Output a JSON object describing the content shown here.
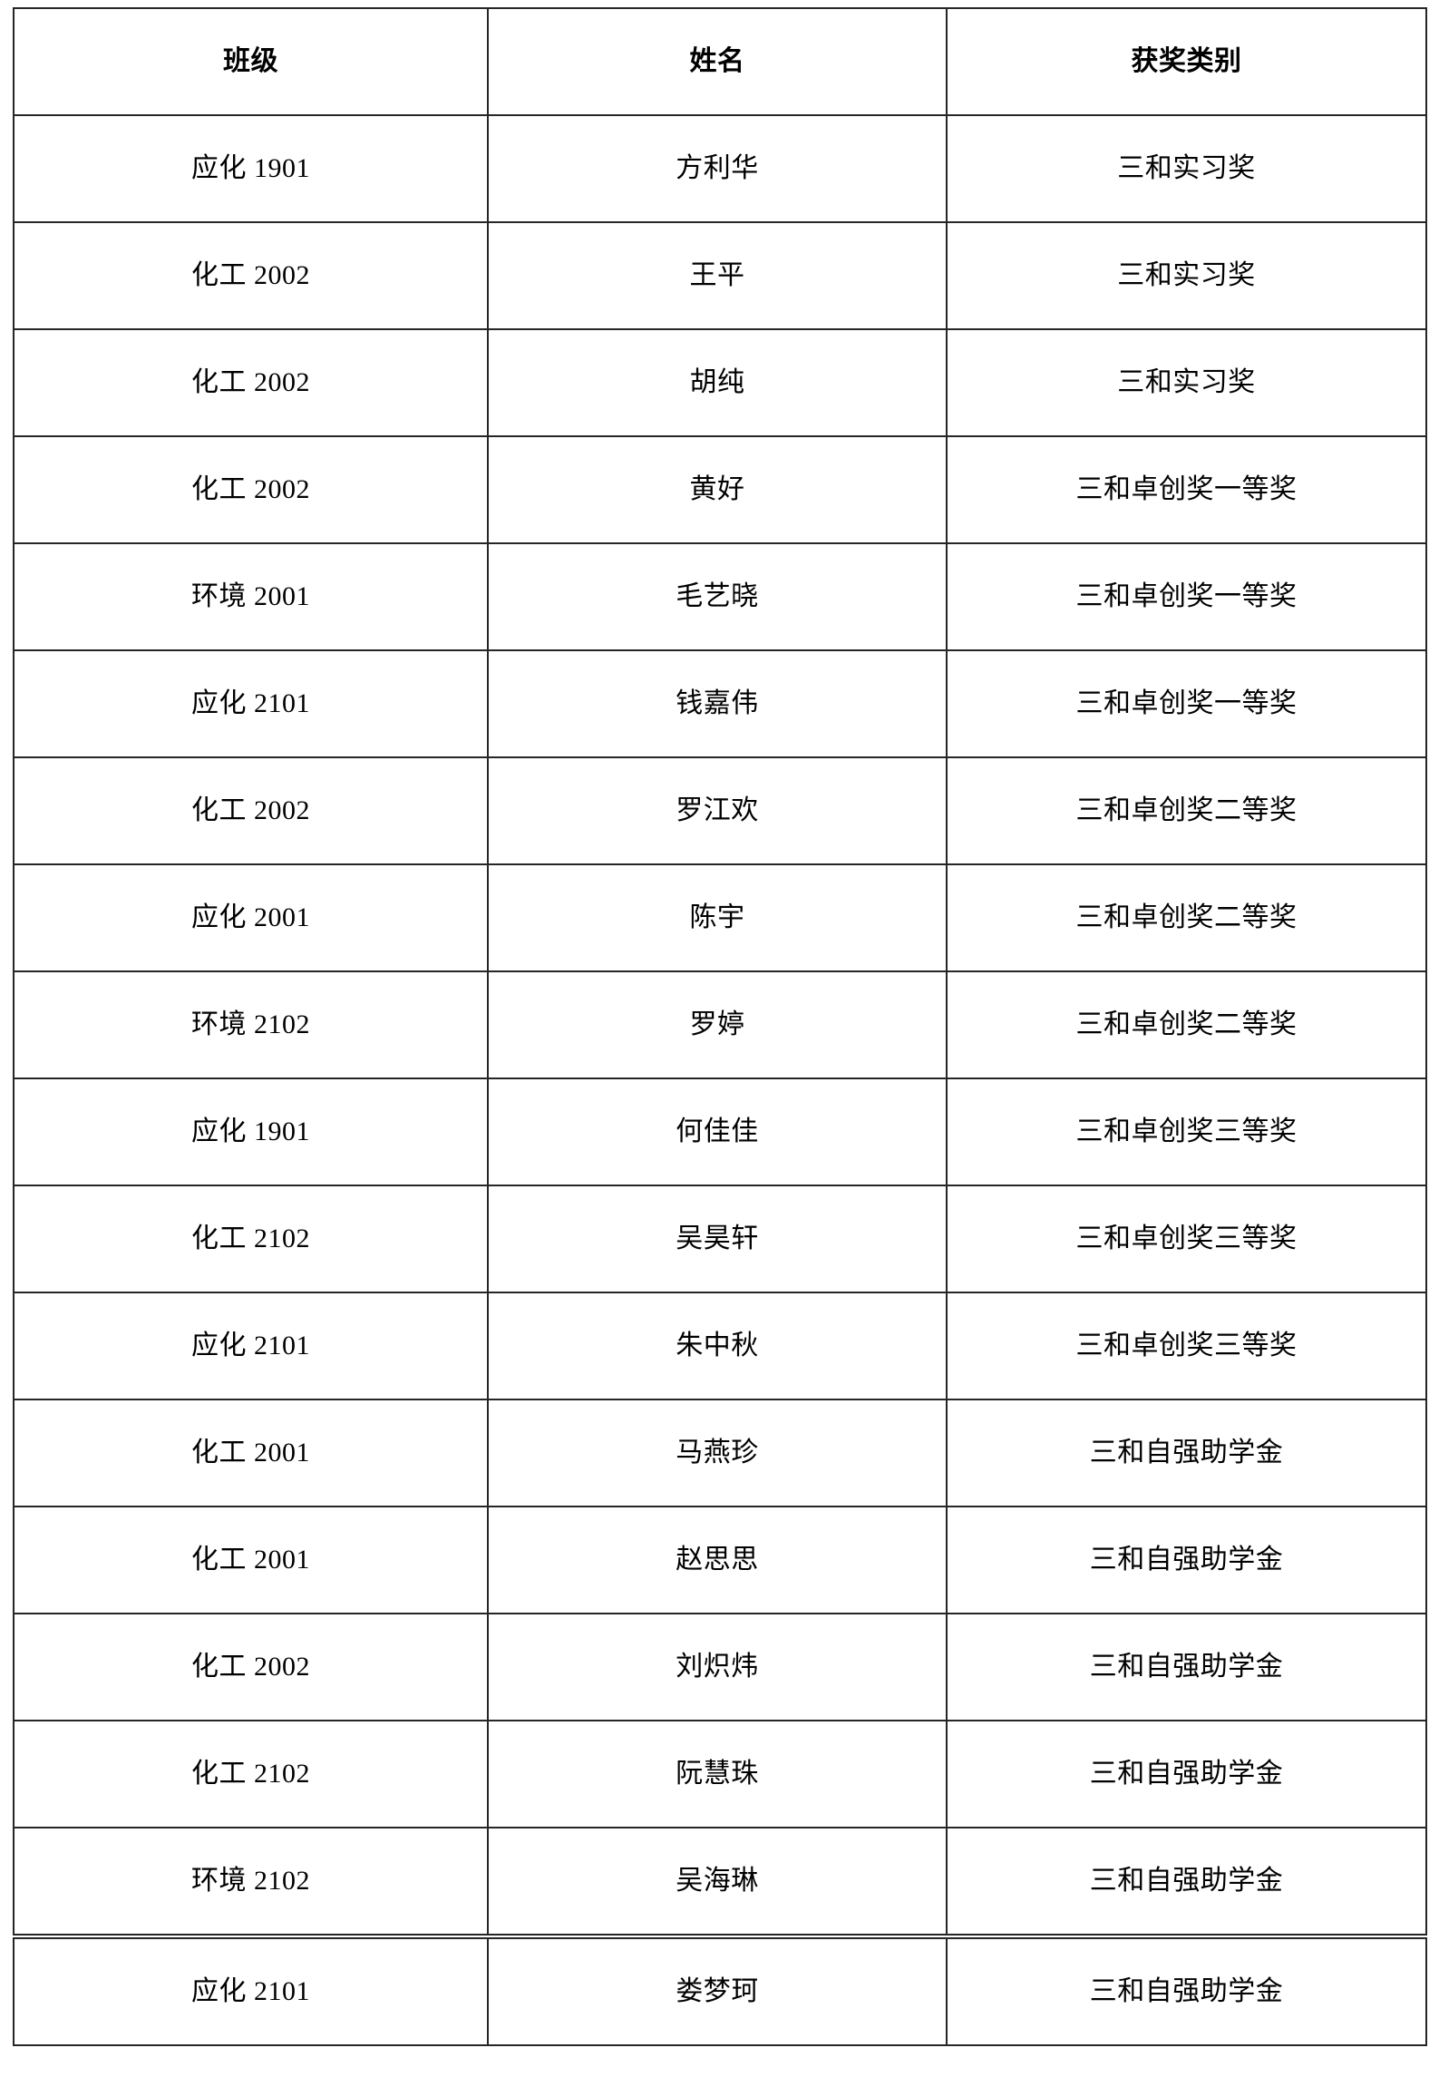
{
  "table": {
    "columns": [
      {
        "key": "class",
        "label": "班级"
      },
      {
        "key": "name",
        "label": "姓名"
      },
      {
        "key": "award",
        "label": "获奖类别"
      }
    ],
    "rows": [
      {
        "class": "应化 1901",
        "name": "方利华",
        "award": "三和实习奖"
      },
      {
        "class": "化工 2002",
        "name": "王平",
        "award": "三和实习奖"
      },
      {
        "class": "化工 2002",
        "name": "胡纯",
        "award": "三和实习奖"
      },
      {
        "class": "化工 2002",
        "name": "黄好",
        "award": "三和卓创奖一等奖"
      },
      {
        "class": "环境 2001",
        "name": "毛艺晓",
        "award": "三和卓创奖一等奖"
      },
      {
        "class": "应化 2101",
        "name": "钱嘉伟",
        "award": "三和卓创奖一等奖"
      },
      {
        "class": "化工 2002",
        "name": "罗江欢",
        "award": "三和卓创奖二等奖"
      },
      {
        "class": "应化 2001",
        "name": "陈宇",
        "award": "三和卓创奖二等奖"
      },
      {
        "class": "环境 2102",
        "name": "罗婷",
        "award": "三和卓创奖二等奖"
      },
      {
        "class": "应化 1901",
        "name": "何佳佳",
        "award": "三和卓创奖三等奖"
      },
      {
        "class": "化工 2102",
        "name": "吴昊轩",
        "award": "三和卓创奖三等奖"
      },
      {
        "class": "应化 2101",
        "name": "朱中秋",
        "award": "三和卓创奖三等奖"
      },
      {
        "class": "化工 2001",
        "name": "马燕珍",
        "award": "三和自强助学金"
      },
      {
        "class": "化工 2001",
        "name": "赵思思",
        "award": "三和自强助学金"
      },
      {
        "class": "化工 2002",
        "name": "刘炽炜",
        "award": "三和自强助学金"
      },
      {
        "class": "化工 2102",
        "name": "阮慧珠",
        "award": "三和自强助学金"
      },
      {
        "class": "环境 2102",
        "name": "吴海琳",
        "award": "三和自强助学金"
      },
      {
        "class": "应化 2101",
        "name": "娄梦珂",
        "award": "三和自强助学金"
      }
    ]
  },
  "colors": {
    "border": "#262626",
    "text": "#000000",
    "background": "#ffffff"
  }
}
